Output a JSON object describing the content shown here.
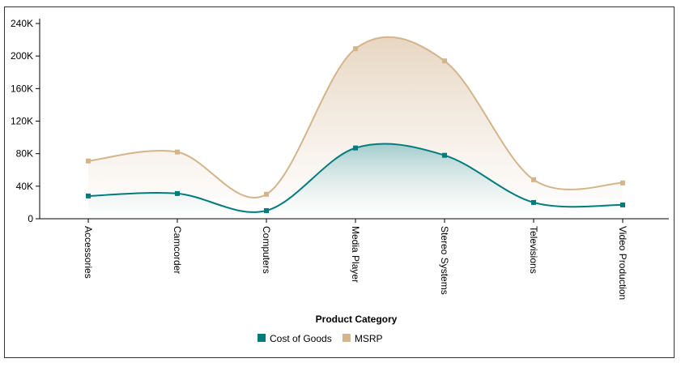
{
  "chart_data": {
    "type": "area",
    "smooth": true,
    "categories": [
      "Accessories",
      "Camcorder",
      "Computers",
      "Media Player",
      "Stereo Systems",
      "Televisions",
      "Video Production"
    ],
    "series": [
      {
        "name": "Cost of Goods",
        "values": [
          28000,
          31000,
          10000,
          87000,
          78000,
          20000,
          17000
        ],
        "color": "#007c7c"
      },
      {
        "name": "MSRP",
        "values": [
          71000,
          82000,
          30000,
          209000,
          194000,
          48000,
          44000
        ],
        "color": "#d4b48a"
      }
    ],
    "ylim": [
      0,
      240000
    ],
    "yticks": [
      0,
      40000,
      80000,
      120000,
      160000,
      200000,
      240000
    ],
    "ytick_labels": [
      "0",
      "40K",
      "80K",
      "120K",
      "160K",
      "200K",
      "240K"
    ],
    "xlabel": "Product Category",
    "ylabel": "",
    "legend": "bottom-center",
    "grid": false
  }
}
